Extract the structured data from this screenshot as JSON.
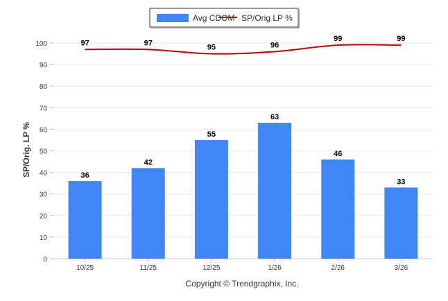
{
  "chart_data": {
    "type": "bar",
    "categories": [
      "10/25",
      "11/25",
      "12/25",
      "1/26",
      "2/26",
      "3/26"
    ],
    "series": [
      {
        "name": "Avg CDOM",
        "type": "bar",
        "color": "#4285f4",
        "values": [
          36,
          42,
          55,
          63,
          46,
          33
        ]
      },
      {
        "name": "SP/Orig LP %",
        "type": "line",
        "color": "#c00000",
        "values": [
          97,
          97,
          95,
          96,
          99,
          99
        ]
      }
    ],
    "ylabel": "SP/Orig. LP %",
    "ylim": [
      0,
      100
    ],
    "yticks": [
      0,
      10,
      20,
      30,
      40,
      50,
      60,
      70,
      80,
      90,
      100
    ],
    "grid": true,
    "legend_position": "top-center"
  },
  "legend": {
    "bar_label": "Avg CDOM",
    "line_label": "SP/Orig LP %"
  },
  "footer": {
    "copyright": "Copyright © Trendgraphix, Inc."
  }
}
